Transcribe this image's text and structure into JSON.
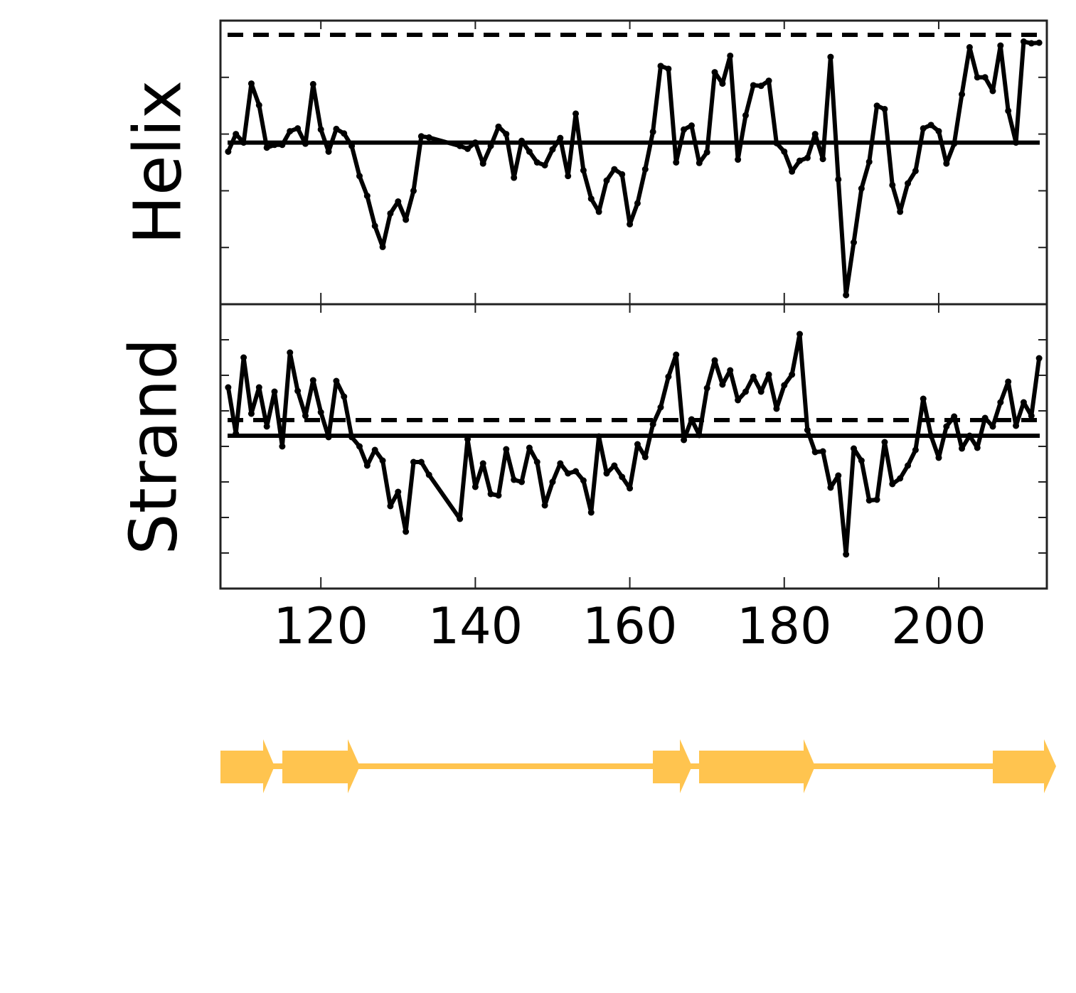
{
  "chart_data": [
    {
      "type": "line",
      "ylabel": "Helix",
      "x": [
        108,
        109,
        110,
        111,
        112,
        113,
        114,
        115,
        116,
        117,
        118,
        119,
        120,
        121,
        122,
        123,
        124,
        125,
        126,
        127,
        128,
        129,
        130,
        131,
        132,
        133,
        134,
        138,
        139,
        140,
        141,
        142,
        143,
        144,
        145,
        146,
        147,
        148,
        149,
        150,
        151,
        152,
        153,
        154,
        155,
        156,
        157,
        158,
        159,
        160,
        161,
        162,
        163,
        164,
        165,
        166,
        167,
        168,
        169,
        170,
        171,
        172,
        173,
        174,
        175,
        176,
        177,
        178,
        179,
        180,
        181,
        182,
        183,
        184,
        185,
        186,
        187,
        188,
        189,
        190,
        191,
        192,
        193,
        194,
        195,
        196,
        197,
        198,
        199,
        200,
        201,
        202,
        203,
        204,
        205,
        206,
        207,
        208,
        209,
        210,
        211,
        212,
        213
      ],
      "series": [
        {
          "color": "#000000",
          "values": [
            2.69,
            3.0,
            2.85,
            3.89,
            3.51,
            2.76,
            2.81,
            2.81,
            3.05,
            3.1,
            2.83,
            3.88,
            3.08,
            2.69,
            3.09,
            3.01,
            2.79,
            2.26,
            1.91,
            1.38,
            1.01,
            1.6,
            1.81,
            1.49,
            2.0,
            2.96,
            2.94,
            2.79,
            2.74,
            2.85,
            2.48,
            2.79,
            3.13,
            3.0,
            2.23,
            2.88,
            2.69,
            2.5,
            2.45,
            2.73,
            2.93,
            2.26,
            3.36,
            2.36,
            1.86,
            1.63,
            2.18,
            2.38,
            2.29,
            1.41,
            1.78,
            2.38,
            3.04,
            4.2,
            4.15,
            2.5,
            3.08,
            3.15,
            2.49,
            2.68,
            4.09,
            3.89,
            4.38,
            2.55,
            3.33,
            3.86,
            3.85,
            3.94,
            2.84,
            2.69,
            2.34,
            2.53,
            2.58,
            3.0,
            2.56,
            4.36,
            2.2,
            0.16,
            1.09,
            2.04,
            2.51,
            3.5,
            3.44,
            2.1,
            1.63,
            2.13,
            2.35,
            3.1,
            3.16,
            3.05,
            2.48,
            2.83,
            3.7,
            4.53,
            4.0,
            4.0,
            3.76,
            4.56,
            3.41,
            2.85,
            4.63,
            4.6,
            4.61
          ]
        }
      ],
      "hlines": [
        {
          "value": 4.75,
          "style": "dashed"
        },
        {
          "value": 2.85,
          "style": "solid"
        }
      ],
      "xlim": [
        107,
        214
      ],
      "xticks": [
        120,
        140,
        160,
        180,
        200
      ],
      "show_xtick_labels": false,
      "ylim": [
        0,
        5
      ],
      "yticks": [
        1,
        2,
        3,
        4
      ]
    },
    {
      "type": "line",
      "ylabel": "Strand",
      "x": [
        108,
        109,
        110,
        111,
        112,
        113,
        114,
        115,
        116,
        117,
        118,
        119,
        120,
        121,
        122,
        123,
        124,
        125,
        126,
        127,
        128,
        129,
        130,
        131,
        132,
        133,
        134,
        138,
        139,
        140,
        141,
        142,
        143,
        144,
        145,
        146,
        147,
        148,
        149,
        150,
        151,
        152,
        153,
        154,
        155,
        156,
        157,
        158,
        159,
        160,
        161,
        162,
        163,
        164,
        165,
        166,
        167,
        168,
        169,
        170,
        171,
        172,
        173,
        174,
        175,
        176,
        177,
        178,
        179,
        180,
        181,
        182,
        183,
        184,
        185,
        186,
        187,
        188,
        189,
        190,
        191,
        192,
        193,
        194,
        195,
        196,
        197,
        198,
        199,
        200,
        201,
        202,
        203,
        204,
        205,
        206,
        207,
        208,
        209,
        210,
        211,
        212,
        213
      ],
      "series": [
        {
          "color": "#000000",
          "values": [
            5.66,
            4.36,
            6.5,
            4.92,
            5.66,
            4.56,
            5.54,
            4.0,
            6.64,
            5.56,
            4.86,
            5.86,
            4.96,
            4.26,
            5.84,
            5.4,
            4.26,
            4.0,
            3.46,
            3.9,
            3.6,
            2.32,
            2.72,
            1.6,
            3.56,
            3.56,
            3.2,
            1.96,
            4.2,
            2.86,
            3.52,
            2.66,
            2.62,
            3.92,
            3.06,
            3.0,
            3.96,
            3.56,
            2.34,
            3.0,
            3.52,
            3.24,
            3.3,
            3.04,
            2.14,
            4.28,
            3.24,
            3.46,
            3.14,
            2.82,
            4.06,
            3.7,
            4.62,
            5.1,
            5.96,
            6.58,
            4.18,
            4.76,
            4.32,
            5.64,
            6.42,
            5.74,
            6.14,
            5.3,
            5.54,
            5.96,
            5.54,
            6.02,
            5.06,
            5.72,
            6.02,
            7.16,
            4.46,
            3.84,
            3.86,
            2.84,
            3.18,
            0.96,
            3.94,
            3.6,
            2.48,
            2.5,
            4.12,
            2.94,
            3.1,
            3.46,
            3.9,
            5.34,
            4.3,
            3.68,
            4.56,
            4.84,
            3.94,
            4.3,
            3.96,
            4.8,
            4.56,
            5.24,
            5.82,
            4.58,
            5.24,
            4.86,
            6.48
          ]
        }
      ],
      "hlines": [
        {
          "value": 4.74,
          "style": "dashed"
        },
        {
          "value": 4.3,
          "style": "solid"
        }
      ],
      "xlim": [
        107,
        214
      ],
      "xticks": [
        120,
        140,
        160,
        180,
        200
      ],
      "show_xtick_labels": true,
      "ylim": [
        0,
        8
      ],
      "yticks": [
        1,
        2,
        3,
        4,
        5,
        6,
        7
      ]
    }
  ]
}
